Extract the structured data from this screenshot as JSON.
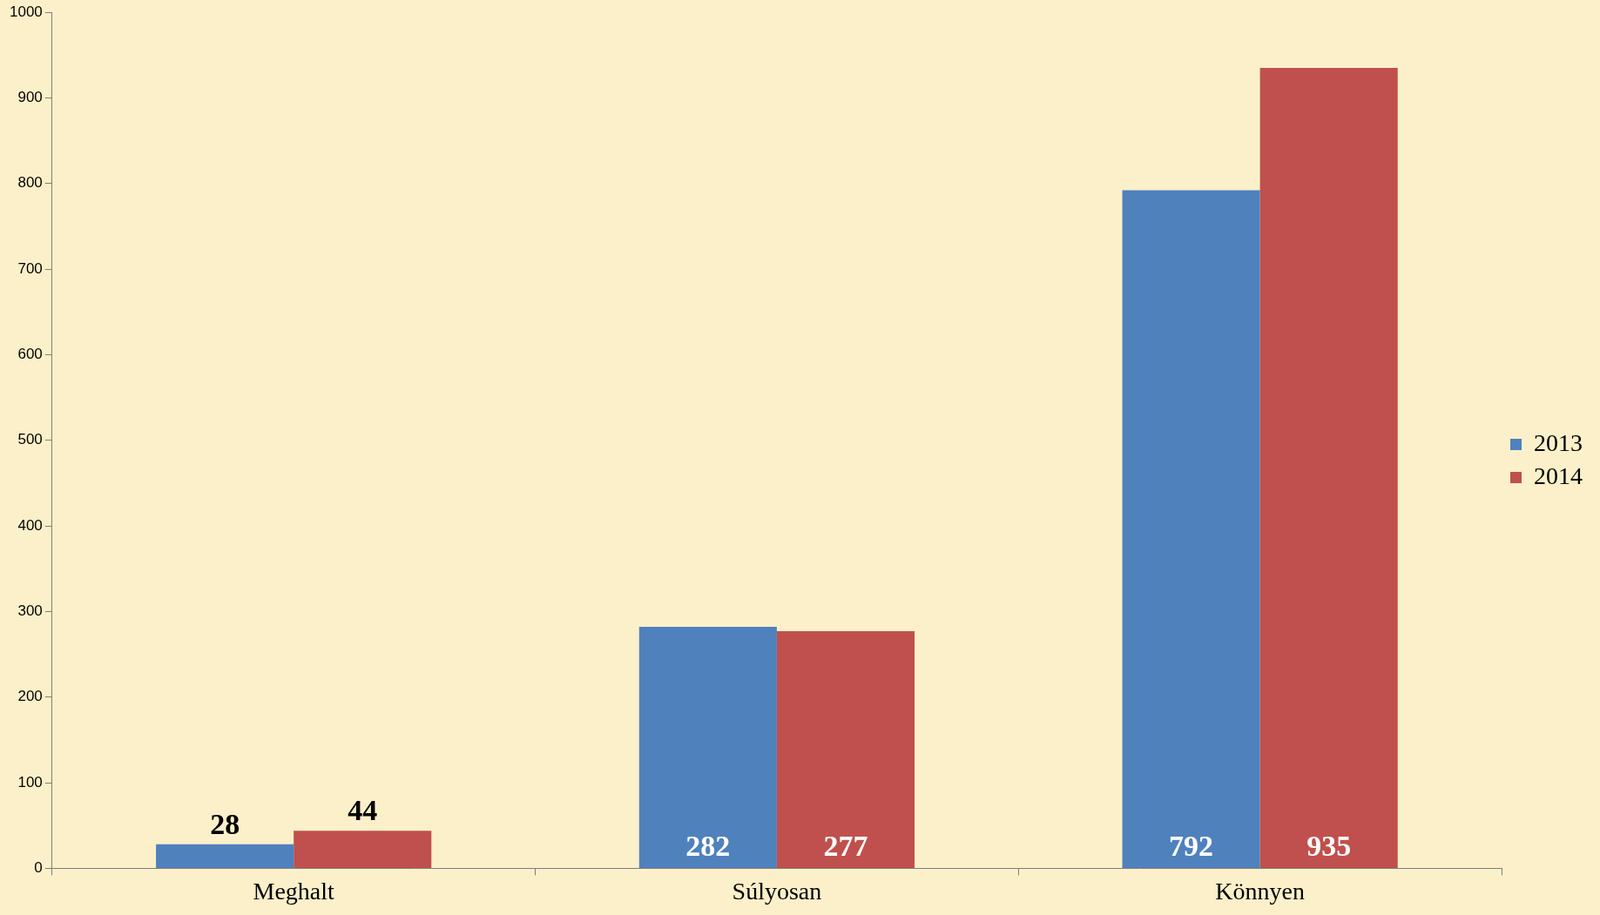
{
  "chart_data": {
    "type": "bar",
    "categories": [
      "Meghalt",
      "Súlyosan",
      "Könnyen"
    ],
    "series": [
      {
        "name": "2013",
        "color": "#4f81bd",
        "values": [
          28,
          282,
          792
        ]
      },
      {
        "name": "2014",
        "color": "#c0504d",
        "values": [
          44,
          277,
          935
        ]
      }
    ],
    "ylim": [
      0,
      1000
    ],
    "yticks": [
      0,
      100,
      200,
      300,
      400,
      500,
      600,
      700,
      800,
      900,
      1000
    ],
    "grid": false,
    "legend": "right",
    "data_labels": true
  }
}
